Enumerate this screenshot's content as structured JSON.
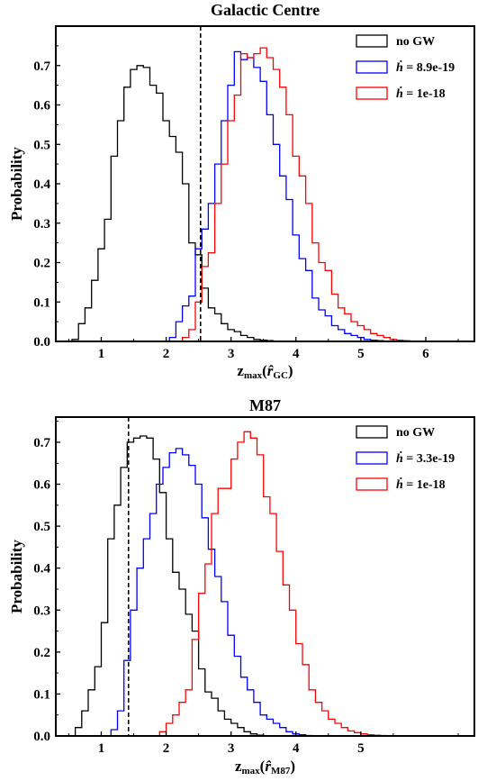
{
  "chart_data": [
    {
      "type": "histogram",
      "title": "Galactic Centre",
      "xlabel": "z",
      "xlabel_sub": "max",
      "xlabel_arg": "r̂",
      "xlabel_arg_sub": "GC",
      "ylabel": "Probability",
      "xlim": [
        0.3,
        6.75
      ],
      "ylim": [
        0,
        0.8
      ],
      "xticks": [
        "1",
        "2",
        "3",
        "4",
        "5",
        "6"
      ],
      "yticks": [
        "0.0",
        "0.1",
        "0.2",
        "0.3",
        "0.4",
        "0.5",
        "0.6",
        "0.7"
      ],
      "threshold_x": 2.53,
      "legend_position": "top-right",
      "series": [
        {
          "name": "no GW",
          "color": "#000000",
          "edges": [
            0.55,
            0.65,
            0.75,
            0.85,
            0.95,
            1.05,
            1.15,
            1.25,
            1.35,
            1.45,
            1.55,
            1.65,
            1.75,
            1.85,
            1.95,
            2.05,
            2.15,
            2.25,
            2.35,
            2.45,
            2.55,
            2.65,
            2.75,
            2.85,
            2.95,
            3.05,
            3.15,
            3.25,
            3.35,
            3.45,
            3.55,
            3.65,
            3.75,
            3.85
          ],
          "values": [
            0.005,
            0.045,
            0.085,
            0.155,
            0.235,
            0.31,
            0.47,
            0.56,
            0.645,
            0.69,
            0.7,
            0.695,
            0.65,
            0.63,
            0.56,
            0.52,
            0.48,
            0.4,
            0.25,
            0.22,
            0.135,
            0.085,
            0.07,
            0.045,
            0.03,
            0.025,
            0.015,
            0.01,
            0.005,
            0.003,
            0.002,
            0.001,
            0.0
          ]
        },
        {
          "name": "ḣ = 8.9e-19",
          "label_main": "ḣ",
          "label_rest": " = 8.9e-19",
          "color": "#0000ff",
          "edges": [
            2.05,
            2.15,
            2.25,
            2.35,
            2.45,
            2.55,
            2.65,
            2.75,
            2.85,
            2.95,
            3.05,
            3.15,
            3.25,
            3.35,
            3.45,
            3.55,
            3.65,
            3.75,
            3.85,
            3.95,
            4.05,
            4.15,
            4.25,
            4.35,
            4.45,
            4.55,
            4.65,
            4.75,
            4.85,
            4.95,
            5.05,
            5.15,
            5.25,
            5.35,
            5.45,
            5.55
          ],
          "values": [
            0.01,
            0.05,
            0.09,
            0.115,
            0.235,
            0.285,
            0.35,
            0.45,
            0.56,
            0.65,
            0.735,
            0.715,
            0.72,
            0.695,
            0.66,
            0.575,
            0.5,
            0.42,
            0.36,
            0.27,
            0.21,
            0.18,
            0.11,
            0.08,
            0.065,
            0.04,
            0.03,
            0.02,
            0.015,
            0.01,
            0.005,
            0.003,
            0.002,
            0.001,
            0.0
          ]
        },
        {
          "name": "ḣ = 1e-18",
          "label_main": "ḣ",
          "label_rest": " = 1e-18",
          "color": "#ff0000",
          "edges": [
            2.25,
            2.35,
            2.45,
            2.55,
            2.65,
            2.75,
            2.85,
            2.95,
            3.05,
            3.15,
            3.25,
            3.35,
            3.45,
            3.55,
            3.65,
            3.75,
            3.85,
            3.95,
            4.05,
            4.15,
            4.25,
            4.35,
            4.45,
            4.55,
            4.65,
            4.75,
            4.85,
            4.95,
            5.05,
            5.15,
            5.25,
            5.35,
            5.45,
            5.55,
            5.65,
            5.75,
            5.85
          ],
          "values": [
            0.01,
            0.03,
            0.1,
            0.19,
            0.225,
            0.35,
            0.45,
            0.56,
            0.625,
            0.73,
            0.72,
            0.73,
            0.745,
            0.72,
            0.69,
            0.645,
            0.575,
            0.47,
            0.42,
            0.35,
            0.25,
            0.2,
            0.18,
            0.12,
            0.085,
            0.07,
            0.05,
            0.04,
            0.03,
            0.02,
            0.015,
            0.01,
            0.005,
            0.003,
            0.002,
            0.0
          ]
        }
      ]
    },
    {
      "type": "histogram",
      "title": "M87",
      "xlabel": "z",
      "xlabel_sub": "max",
      "xlabel_arg": "r̂",
      "xlabel_arg_sub": "M87",
      "ylabel": "Probability",
      "xlim": [
        0.3,
        6.75
      ],
      "ylim": [
        0,
        0.76
      ],
      "xticks": [
        "1",
        "2",
        "3",
        "4",
        "5"
      ],
      "yticks": [
        "0.0",
        "0.1",
        "0.2",
        "0.3",
        "0.4",
        "0.5",
        "0.6",
        "0.7"
      ],
      "threshold_x": 1.42,
      "legend_position": "top-right",
      "series": [
        {
          "name": "no GW",
          "color": "#000000",
          "edges": [
            0.6,
            0.7,
            0.8,
            0.9,
            1.0,
            1.1,
            1.2,
            1.3,
            1.4,
            1.5,
            1.6,
            1.7,
            1.8,
            1.9,
            2.0,
            2.1,
            2.2,
            2.3,
            2.4,
            2.5,
            2.6,
            2.7,
            2.8,
            2.9,
            3.0,
            3.1,
            3.2,
            3.3,
            3.4,
            3.5,
            3.6
          ],
          "values": [
            0.02,
            0.06,
            0.11,
            0.165,
            0.27,
            0.47,
            0.55,
            0.64,
            0.7,
            0.71,
            0.715,
            0.71,
            0.66,
            0.58,
            0.47,
            0.39,
            0.35,
            0.29,
            0.25,
            0.16,
            0.105,
            0.09,
            0.06,
            0.04,
            0.03,
            0.02,
            0.01,
            0.005,
            0.002,
            0.0
          ]
        },
        {
          "name": "ḣ = 3.3e-19",
          "label_main": "ḣ",
          "label_rest": " = 3.3e-19",
          "color": "#0000ff",
          "edges": [
            1.15,
            1.25,
            1.35,
            1.45,
            1.55,
            1.65,
            1.75,
            1.85,
            1.95,
            2.05,
            2.15,
            2.25,
            2.35,
            2.45,
            2.55,
            2.65,
            2.75,
            2.85,
            2.95,
            3.05,
            3.15,
            3.25,
            3.35,
            3.45,
            3.55,
            3.65,
            3.75,
            3.85,
            3.95,
            4.05,
            4.15,
            4.25,
            4.35
          ],
          "values": [
            0.015,
            0.06,
            0.18,
            0.3,
            0.4,
            0.47,
            0.53,
            0.6,
            0.64,
            0.675,
            0.685,
            0.67,
            0.645,
            0.6,
            0.52,
            0.445,
            0.38,
            0.32,
            0.24,
            0.19,
            0.14,
            0.11,
            0.08,
            0.05,
            0.04,
            0.03,
            0.02,
            0.01,
            0.005,
            0.003,
            0.001,
            0.0
          ]
        },
        {
          "name": "ḣ = 1e-18",
          "label_main": "ḣ",
          "label_rest": " = 1e-18",
          "color": "#ff0000",
          "edges": [
            1.9,
            2.0,
            2.1,
            2.2,
            2.3,
            2.4,
            2.5,
            2.6,
            2.7,
            2.8,
            2.9,
            3.0,
            3.1,
            3.2,
            3.3,
            3.4,
            3.5,
            3.6,
            3.7,
            3.8,
            3.9,
            4.0,
            4.1,
            4.2,
            4.3,
            4.4,
            4.5,
            4.6,
            4.7,
            4.8,
            4.9,
            5.0,
            5.1,
            5.2,
            5.3,
            5.4,
            5.5
          ],
          "values": [
            0.01,
            0.03,
            0.05,
            0.08,
            0.11,
            0.23,
            0.34,
            0.41,
            0.53,
            0.59,
            0.59,
            0.66,
            0.7,
            0.725,
            0.71,
            0.67,
            0.57,
            0.53,
            0.44,
            0.36,
            0.3,
            0.22,
            0.17,
            0.11,
            0.08,
            0.06,
            0.04,
            0.03,
            0.02,
            0.012,
            0.008,
            0.005,
            0.003,
            0.002,
            0.001,
            0.0
          ]
        }
      ]
    }
  ]
}
